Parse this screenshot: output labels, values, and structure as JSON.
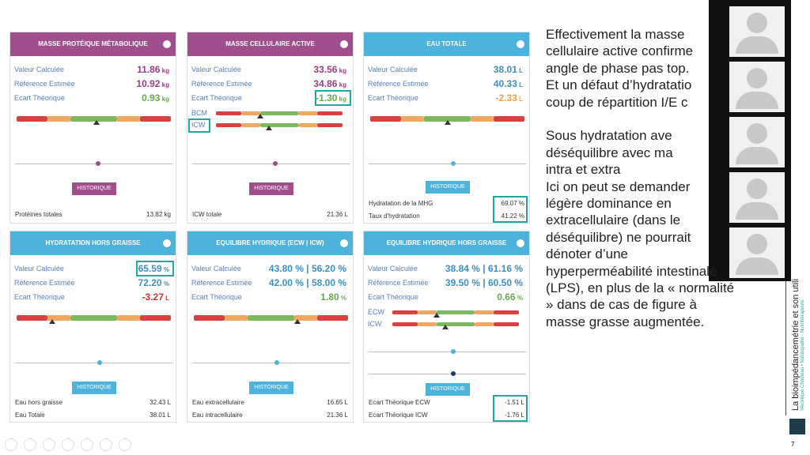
{
  "cards": [
    {
      "title": "MASSE PROTÉIQUE MÉTABOLIQUE",
      "rows": [
        {
          "label": "Valeur Calculée",
          "value": "11.86",
          "unit": "kg"
        },
        {
          "label": "Référence Estimée",
          "value": "10.92",
          "unit": "kg"
        },
        {
          "label": "Ecart Théorique",
          "value": "0.93",
          "unit": "kg"
        }
      ],
      "button": "HISTORIQUE",
      "footer": [
        {
          "label": "Protéines totales",
          "value": "13.82 kg"
        }
      ]
    },
    {
      "title": "MASSE CELLULAIRE ACTIVE",
      "rows": [
        {
          "label": "Valeur Calculée",
          "value": "33.56",
          "unit": "kg"
        },
        {
          "label": "Référence Estimée",
          "value": "34.86",
          "unit": "kg"
        },
        {
          "label": "Ecart Théorique",
          "value": "-1.30",
          "unit": "kg"
        }
      ],
      "sub_bars": [
        "BCM",
        "ICW"
      ],
      "button": "HISTORIQUE",
      "footer": [
        {
          "label": "ICW totale",
          "value": "21.36 L"
        }
      ]
    },
    {
      "title": "EAU TOTALE",
      "rows": [
        {
          "label": "Valeur Calculée",
          "value": "38.01",
          "unit": "L"
        },
        {
          "label": "Référence Estimée",
          "value": "40.33",
          "unit": "L"
        },
        {
          "label": "Ecart Théorique",
          "value": "-2.33",
          "unit": "L"
        }
      ],
      "button": "HISTORIQUE",
      "footer": [
        {
          "label": "Hydratation de la MHG",
          "value": "69.07 %"
        },
        {
          "label": "Taux d'hydratation",
          "value": "41.22 %"
        }
      ]
    },
    {
      "title": "HYDRATATION HORS GRAISSE",
      "rows": [
        {
          "label": "Valeur Calculée",
          "value": "65.59",
          "unit": "%"
        },
        {
          "label": "Référence Estimée",
          "value": "72.20",
          "unit": "%"
        },
        {
          "label": "Ecart Théorique",
          "value": "-3.27",
          "unit": "L"
        }
      ],
      "button": "HISTORIQUE",
      "footer": [
        {
          "label": "Eau hors graisse",
          "value": "32.43 L"
        },
        {
          "label": "Eau Totale",
          "value": "38.01 L"
        }
      ]
    },
    {
      "title": "EQUILIBRE HYDRIQUE (ECW | ICW)",
      "rows": [
        {
          "label": "Valeur Calculée",
          "value": "43.80 % | 56.20 %",
          "unit": ""
        },
        {
          "label": "Référence Estimée",
          "value": "42.00 % | 58.00 %",
          "unit": ""
        },
        {
          "label": "Ecart Théorique",
          "value": "1.80",
          "unit": "%"
        }
      ],
      "button": "HISTORIQUE",
      "footer": [
        {
          "label": "Eau extracellulaire",
          "value": "16.65 L"
        },
        {
          "label": "Eau intracellulaire",
          "value": "21.36 L"
        }
      ]
    },
    {
      "title": "EQUILIBRE HYDRIQUE HORS GRAISSE",
      "rows": [
        {
          "label": "Valeur Calculée",
          "value": "38.84 % | 61.16 %",
          "unit": ""
        },
        {
          "label": "Référence Estimée",
          "value": "39.50 % | 60.50 %",
          "unit": ""
        },
        {
          "label": "Ecart Théorique",
          "value": "0.66",
          "unit": "%"
        }
      ],
      "sub_bars": [
        "ECW",
        "ICW"
      ],
      "button": "HISTORIQUE",
      "footer": [
        {
          "label": "Ecart Théorique ECW",
          "value": "-1.51 L"
        },
        {
          "label": "Ecart Théorique ICW",
          "value": "-1.76 L"
        }
      ]
    }
  ],
  "notes": [
    "Effectivement la masse",
    "cellulaire active confirme",
    "angle de phase pas top.",
    "Et un défaut d’hydratatio",
    "coup de répartition I/E c",
    "",
    "Sous hydratation ave",
    "déséquilibre avec ma",
    "intra et extra",
    "Ici on peut se demander",
    "légère dominance en",
    "extracellulaire (dans le",
    "déséquilibre) ne pourrait",
    "dénoter d’une",
    "hyperperméabilité intestinale",
    "(LPS), en plus de la «   normalité",
    "» dans de cas de figure à",
    "masse grasse augmentée."
  ],
  "side": {
    "title": "La bioimpédancemétrie et son utili",
    "author": "Véronique Chouteau • Naturopathe - Nutrithérapeute"
  },
  "page_number": "7"
}
